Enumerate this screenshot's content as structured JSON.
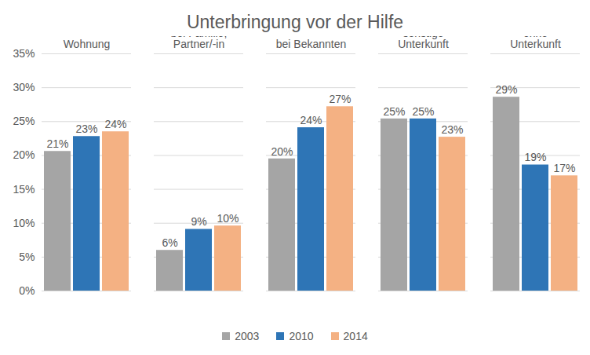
{
  "chart_data": {
    "type": "bar",
    "title": "Unterbringung vor der Hilfe",
    "categories": [
      "Wohnung",
      "bei Familie, Partner/-in",
      "bei Bekannten",
      "sonstige Unterkunft",
      "ohne Unterkunft"
    ],
    "series": [
      {
        "name": "2003",
        "color": "#a5a5a5",
        "values": [
          20.6,
          6.0,
          19.5,
          25.4,
          28.6
        ],
        "value_labels": [
          "21%",
          "6%",
          "20%",
          "25%",
          "29%"
        ]
      },
      {
        "name": "2010",
        "color": "#2e75b6",
        "values": [
          22.8,
          9.1,
          24.1,
          25.4,
          18.6
        ],
        "value_labels": [
          "23%",
          "9%",
          "24%",
          "25%",
          "19%"
        ]
      },
      {
        "name": "2014",
        "color": "#f4b183",
        "values": [
          23.5,
          9.6,
          27.2,
          22.7,
          17.0
        ],
        "value_labels": [
          "24%",
          "10%",
          "27%",
          "23%",
          "17%"
        ]
      }
    ],
    "ylim": [
      0,
      35
    ],
    "yticks": [
      {
        "value": 0,
        "label": "0%"
      },
      {
        "value": 5,
        "label": "5%"
      },
      {
        "value": 10,
        "label": "10%"
      },
      {
        "value": 15,
        "label": "15%"
      },
      {
        "value": 20,
        "label": "20%"
      },
      {
        "value": 25,
        "label": "25%"
      },
      {
        "value": 30,
        "label": "30%"
      },
      {
        "value": 35,
        "label": "35%"
      }
    ],
    "grid": true,
    "data_labels": true,
    "legend": "bottom"
  }
}
